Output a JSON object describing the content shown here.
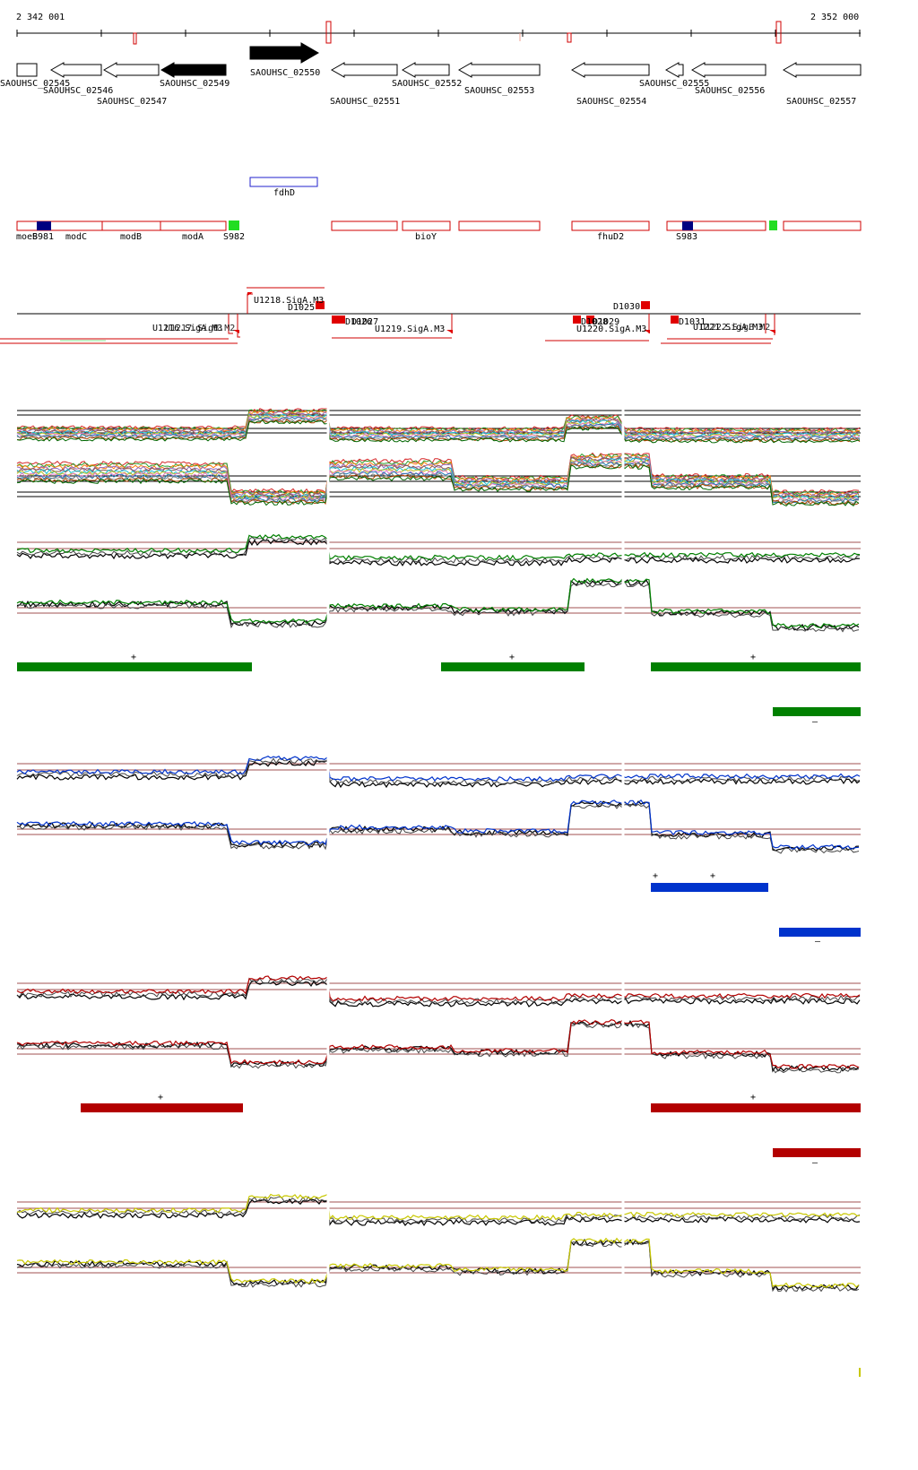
{
  "coords": {
    "start": "2 342 001",
    "end": "2 352 000"
  },
  "genes": [
    {
      "label": "SAOUHSC_02545",
      "strand": "+",
      "filled": false
    },
    {
      "label": "SAOUHSC_02546",
      "strand": "-",
      "filled": false
    },
    {
      "label": "SAOUHSC_02547",
      "strand": "-",
      "filled": false
    },
    {
      "label": "SAOUHSC_02549",
      "strand": "-",
      "filled": true
    },
    {
      "label": "SAOUHSC_02550",
      "strand": "+",
      "filled": true
    },
    {
      "label": "SAOUHSC_02551",
      "strand": "-",
      "filled": false
    },
    {
      "label": "SAOUHSC_02552",
      "strand": "-",
      "filled": false
    },
    {
      "label": "SAOUHSC_02553",
      "strand": "-",
      "filled": false
    },
    {
      "label": "SAOUHSC_02554",
      "strand": "-",
      "filled": false
    },
    {
      "label": "SAOUHSC_02555",
      "strand": "-",
      "filled": false
    },
    {
      "label": "SAOUHSC_02556",
      "strand": "-",
      "filled": false
    },
    {
      "label": "SAOUHSC_02557",
      "strand": "-",
      "filled": false
    }
  ],
  "gene_names": [
    "fdhD",
    "moeB",
    "S981",
    "modC",
    "modB",
    "modA",
    "S982",
    "bioY",
    "fhuD2",
    "S983"
  ],
  "features": [
    "U1218.SigA.M3",
    "D1025",
    "U1216.SigA.M3",
    "U1217.SigB.M2",
    "D1026",
    "D1027",
    "U1219.SigA.M3",
    "D1028",
    "D1029",
    "U1220.SigA.M3",
    "D1030",
    "D1031",
    "U1221.SigA.M3",
    "U1222.SigB.M2"
  ],
  "tracks": [
    {
      "name": "all-conditions",
      "color": "multi"
    },
    {
      "name": "green-condition",
      "color": "#008000",
      "plus_marks": [
        "+",
        "+",
        "+"
      ],
      "minus_marks": [
        "–"
      ]
    },
    {
      "name": "blue-condition",
      "color": "#0033cc",
      "plus_marks": [
        "+",
        "+"
      ],
      "minus_marks": [
        "–"
      ]
    },
    {
      "name": "red-condition",
      "color": "#b30000",
      "plus_marks": [
        "+",
        "+"
      ],
      "minus_marks": [
        "–"
      ]
    },
    {
      "name": "yellow-condition",
      "color": "#cccc00"
    }
  ]
}
